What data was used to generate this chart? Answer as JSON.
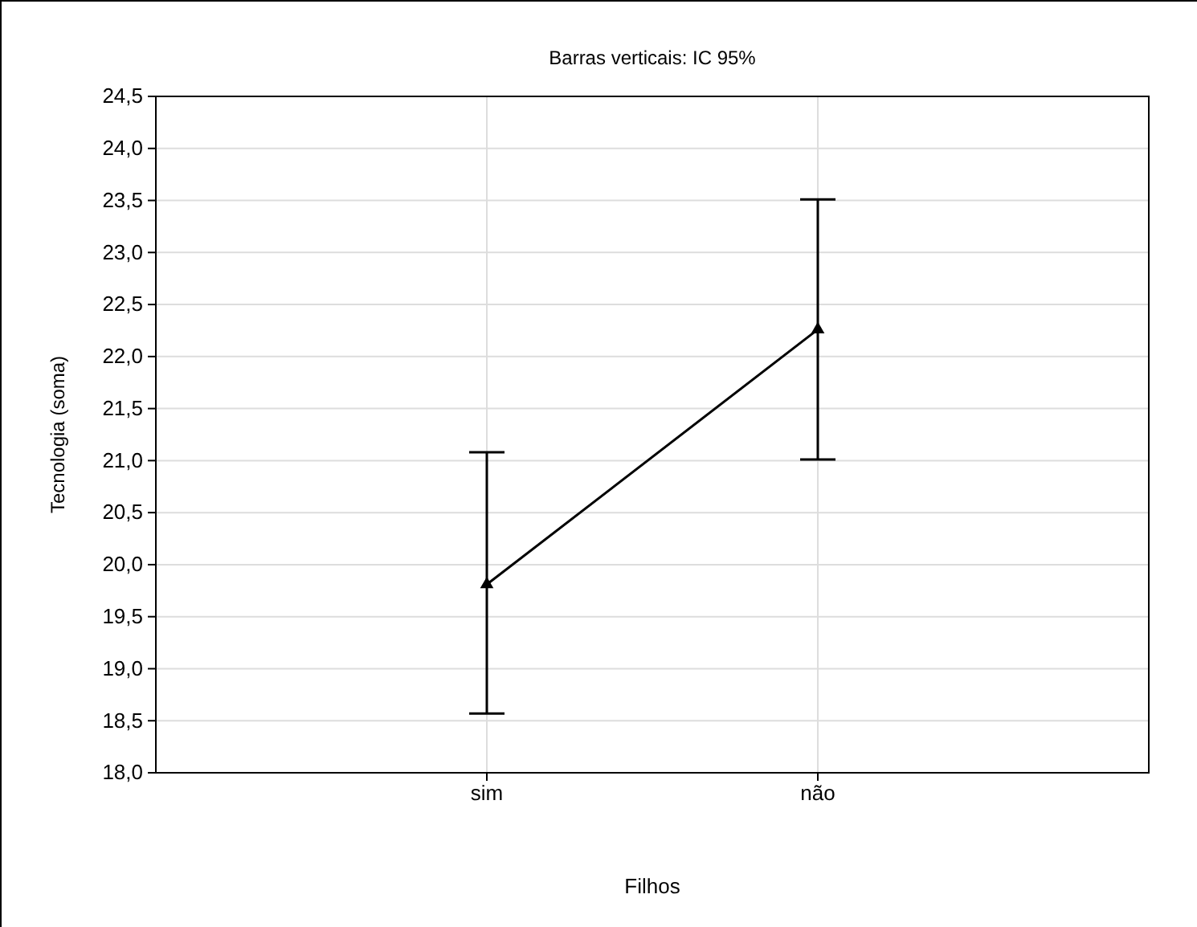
{
  "chart_data": {
    "type": "line",
    "title": "Barras verticais: IC 95%",
    "xlabel": "Filhos",
    "ylabel": "Tecnologia (soma)",
    "categories": [
      "sim",
      "não"
    ],
    "color": "#000000",
    "values": [
      19.81,
      22.26
    ],
    "errors": [
      [
        18.57,
        21.08
      ],
      [
        21.01,
        23.51
      ]
    ],
    "ylim": [
      18,
      24.5
    ],
    "yticks": [
      {
        "value": 18,
        "label": "18,0"
      },
      {
        "value": 18.5,
        "label": "18,5"
      },
      {
        "value": 19,
        "label": "19,0"
      },
      {
        "value": 19.5,
        "label": "19,5"
      },
      {
        "value": 20,
        "label": "20,0"
      },
      {
        "value": 20.5,
        "label": "20,5"
      },
      {
        "value": 21,
        "label": "21,0"
      },
      {
        "value": 21.5,
        "label": "21,5"
      },
      {
        "value": 22,
        "label": "22,0"
      },
      {
        "value": 22.5,
        "label": "22,5"
      },
      {
        "value": 23,
        "label": "23,0"
      },
      {
        "value": 23.5,
        "label": "23,5"
      },
      {
        "value": 24,
        "label": "24,0"
      },
      {
        "value": 24.5,
        "label": "24,5"
      }
    ],
    "grid": true,
    "marker": "triangle",
    "line_style": "solid"
  }
}
